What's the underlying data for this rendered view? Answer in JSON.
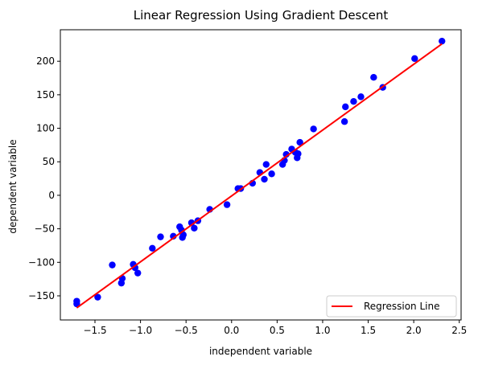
{
  "chart_data": {
    "type": "scatter",
    "title": "Linear Regression Using Gradient Descent",
    "xlabel": "independent variable",
    "ylabel": "dependent variable",
    "xlim": [
      -1.88,
      2.52
    ],
    "ylim": [
      -186,
      247
    ],
    "xticks": [
      -1.5,
      -1.0,
      -0.5,
      0.0,
      0.5,
      1.0,
      1.5,
      2.0,
      2.5
    ],
    "yticks": [
      -150,
      -100,
      -50,
      0,
      50,
      100,
      150,
      200
    ],
    "grid": false,
    "legend": {
      "position": "bottom-right",
      "entries": [
        {
          "label": "Regression Line",
          "color": "#ff0000",
          "kind": "line"
        }
      ]
    },
    "colors": {
      "points": "#0000ff",
      "line": "#ff0000"
    },
    "regression_line": {
      "x": [
        -1.7,
        2.31
      ],
      "y": [
        -168,
        226
      ]
    },
    "points": {
      "x": [
        -1.7,
        -1.7,
        -1.47,
        -1.31,
        -1.21,
        -1.2,
        -1.08,
        -1.06,
        -1.03,
        -0.87,
        -0.78,
        -0.64,
        -0.57,
        -0.55,
        -0.54,
        -0.53,
        -0.44,
        -0.41,
        -0.37,
        -0.24,
        -0.05,
        0.07,
        0.1,
        0.23,
        0.31,
        0.36,
        0.38,
        0.44,
        0.56,
        0.58,
        0.6,
        0.66,
        0.7,
        0.72,
        0.73,
        0.75,
        0.9,
        1.24,
        1.25,
        1.34,
        1.42,
        1.56,
        1.66,
        2.01,
        2.31
      ],
      "y": [
        -162,
        -158,
        -152,
        -104,
        -131,
        -124,
        -103,
        -108,
        -116,
        -79,
        -62,
        -61,
        -47,
        -52,
        -63,
        -59,
        -41,
        -49,
        -38,
        -21,
        -14,
        10,
        10,
        18,
        34,
        24,
        46,
        32,
        46,
        52,
        61,
        69,
        64,
        56,
        62,
        79,
        99,
        110,
        132,
        140,
        147,
        176,
        161,
        204,
        230
      ]
    }
  }
}
